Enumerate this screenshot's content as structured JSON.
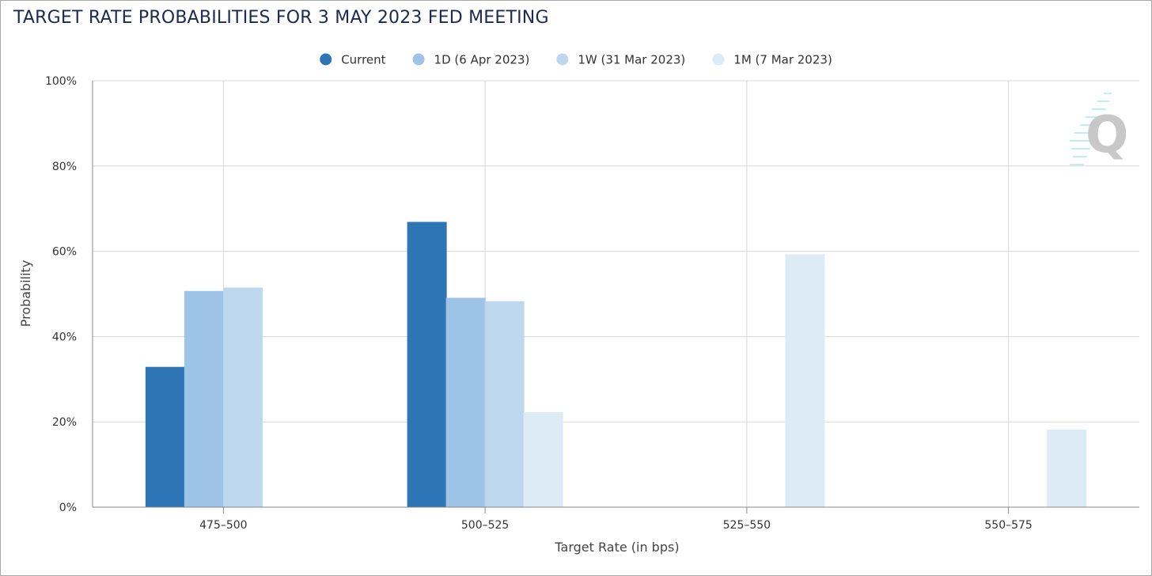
{
  "chart_data": {
    "type": "bar",
    "title": "TARGET RATE PROBABILITIES FOR 3 MAY 2023 FED MEETING",
    "xlabel": "Target Rate (in bps)",
    "ylabel": "Probability",
    "categories": [
      "475-500",
      "500-525",
      "525-550",
      "550-575"
    ],
    "ylim": [
      0,
      100
    ],
    "yticks": [
      0,
      20,
      40,
      60,
      80,
      100
    ],
    "ytick_labels": [
      "0%",
      "20%",
      "40%",
      "60%",
      "80%",
      "100%"
    ],
    "grid": true,
    "legend_position": "top-center",
    "series": [
      {
        "name": "Current",
        "color": "#2e75b6",
        "values": [
          32.8,
          66.8,
          0,
          0
        ]
      },
      {
        "name": "1D (6 Apr 2023)",
        "color": "#9dc3e6",
        "values": [
          50.6,
          49.0,
          0,
          0
        ]
      },
      {
        "name": "1W (31 Mar 2023)",
        "color": "#bdd7ee",
        "values": [
          51.4,
          48.2,
          0,
          0
        ]
      },
      {
        "name": "1M (7 Mar 2023)",
        "color": "#ddebf7",
        "values": [
          0,
          22.2,
          59.2,
          18.1
        ]
      }
    ]
  },
  "watermark": {
    "name": "cme-quikstrike-logo",
    "letter": "Q"
  }
}
